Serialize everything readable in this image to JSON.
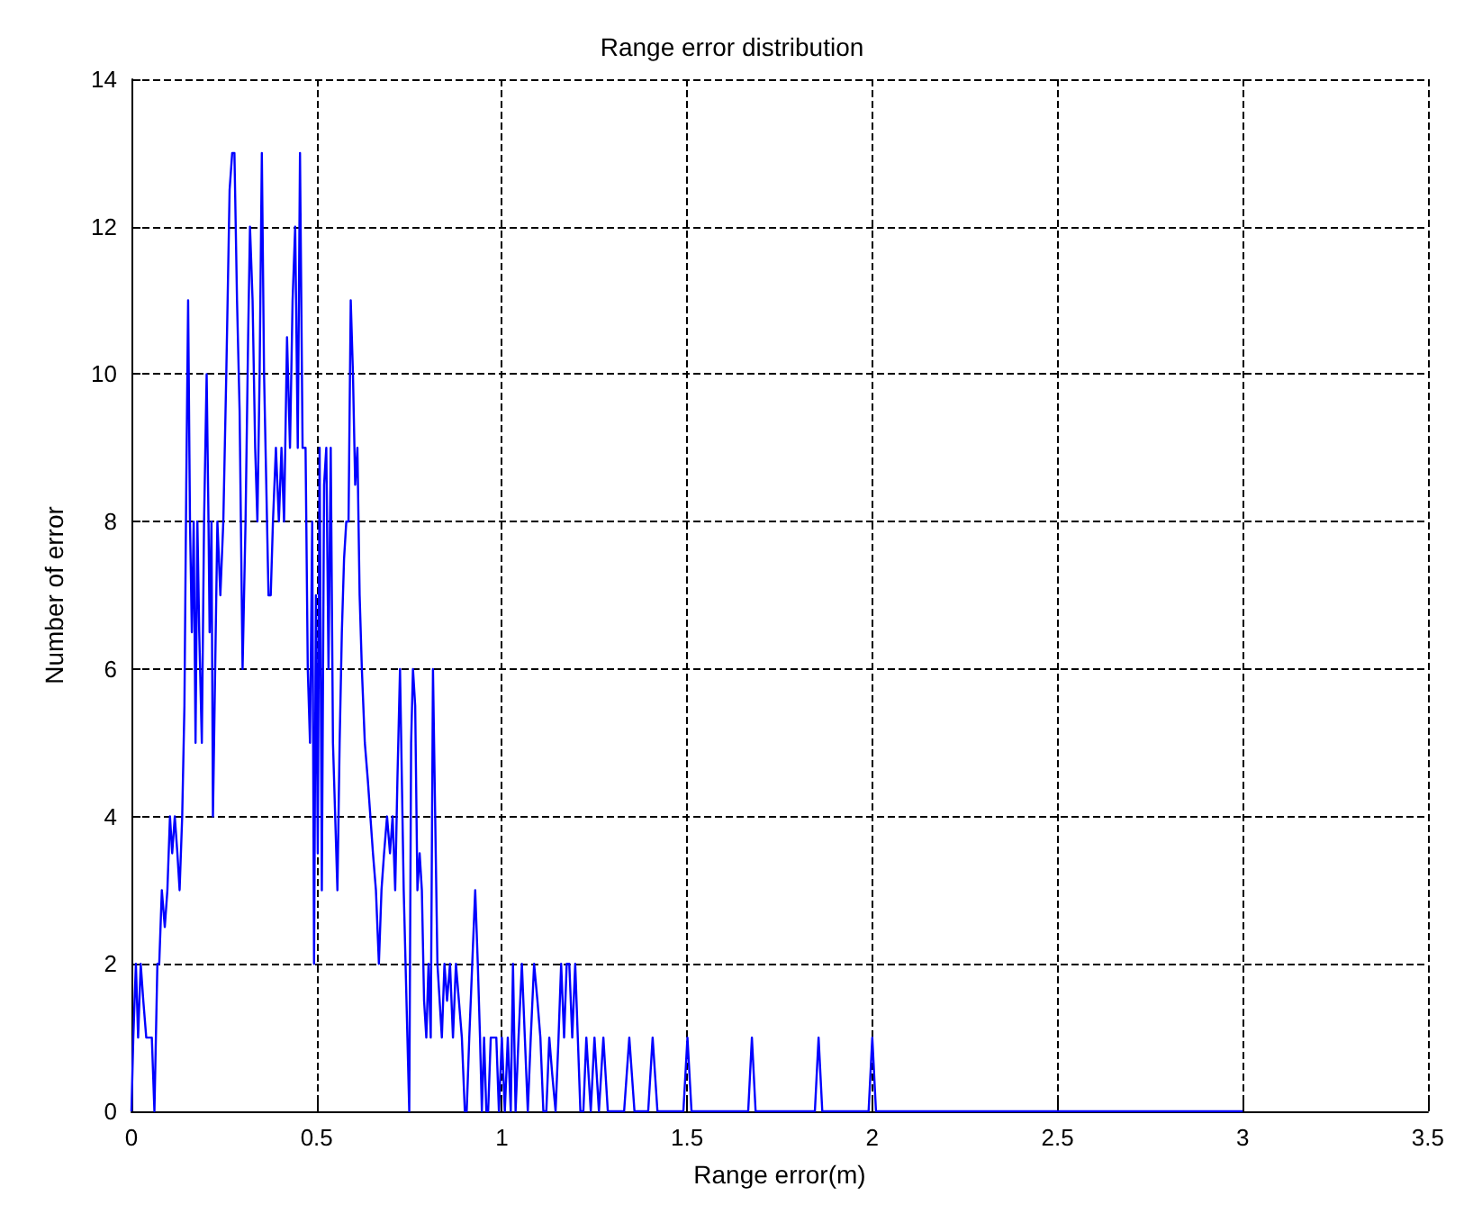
{
  "chart_data": {
    "type": "line",
    "title": "Range error distribution",
    "xlabel": "Range error(m)",
    "ylabel": "Number of error",
    "xlim": [
      0,
      3.5
    ],
    "xticks": [
      0,
      0.5,
      1,
      1.5,
      2,
      2.5,
      3,
      3.5
    ],
    "ylim": [
      0,
      14
    ],
    "yticks": [
      0,
      2,
      4,
      6,
      8,
      10,
      12,
      14
    ],
    "grid": true,
    "marker": "none",
    "line_style": "solid",
    "series": [
      {
        "color": "#0000ff",
        "x": [
          0,
          0.005,
          0.012,
          0.018,
          0.025,
          0.032,
          0.04,
          0.048,
          0.055,
          0.062,
          0.07,
          0.075,
          0.082,
          0.09,
          0.097,
          0.104,
          0.11,
          0.117,
          0.124,
          0.13,
          0.137,
          0.143,
          0.148,
          0.153,
          0.158,
          0.163,
          0.168,
          0.173,
          0.178,
          0.183,
          0.19,
          0.196,
          0.203,
          0.208,
          0.211,
          0.216,
          0.22,
          0.226,
          0.232,
          0.24,
          0.248,
          0.256,
          0.265,
          0.272,
          0.278,
          0.285,
          0.292,
          0.3,
          0.308,
          0.315,
          0.32,
          0.327,
          0.334,
          0.34,
          0.346,
          0.352,
          0.358,
          0.364,
          0.37,
          0.376,
          0.382,
          0.39,
          0.398,
          0.405,
          0.412,
          0.42,
          0.428,
          0.435,
          0.442,
          0.449,
          0.455,
          0.462,
          0.47,
          0.476,
          0.482,
          0.488,
          0.493,
          0.498,
          0.503,
          0.508,
          0.514,
          0.52,
          0.526,
          0.532,
          0.538,
          0.544,
          0.55,
          0.556,
          0.562,
          0.568,
          0.574,
          0.58,
          0.586,
          0.592,
          0.598,
          0.604,
          0.61,
          0.616,
          0.622,
          0.63,
          0.638,
          0.645,
          0.652,
          0.66,
          0.668,
          0.675,
          0.682,
          0.69,
          0.698,
          0.705,
          0.712,
          0.718,
          0.725,
          0.73,
          0.735,
          0.74,
          0.745,
          0.75,
          0.755,
          0.76,
          0.766,
          0.772,
          0.778,
          0.784,
          0.79,
          0.796,
          0.802,
          0.808,
          0.814,
          0.82,
          0.826,
          0.832,
          0.838,
          0.845,
          0.852,
          0.86,
          0.868,
          0.876,
          0.884,
          0.892,
          0.9,
          0.905,
          0.912,
          0.92,
          0.928,
          0.935,
          0.941,
          0.946,
          0.952,
          0.958,
          0.963,
          0.97,
          0.978,
          0.985,
          0.992,
          1.0,
          1.008,
          1.016,
          1.024,
          1.03,
          1.037,
          1.045,
          1.054,
          1.062,
          1.07,
          1.078,
          1.087,
          1.096,
          1.104,
          1.112,
          1.12,
          1.128,
          1.136,
          1.145,
          1.153,
          1.16,
          1.168,
          1.175,
          1.182,
          1.19,
          1.198,
          1.205,
          1.212,
          1.22,
          1.228,
          1.24,
          1.25,
          1.262,
          1.274,
          1.286,
          1.298,
          1.33,
          1.344,
          1.358,
          1.395,
          1.407,
          1.42,
          1.49,
          1.501,
          1.512,
          1.665,
          1.675,
          1.685,
          1.845,
          1.855,
          1.865,
          1.99,
          2.0,
          2.01,
          3.0
        ],
        "values": [
          0,
          1,
          2,
          1,
          2,
          1.5,
          1,
          1,
          1,
          0,
          2,
          2,
          3,
          2.5,
          3,
          4,
          3.5,
          4,
          3.5,
          3,
          4,
          5.5,
          8.5,
          11,
          8,
          6.5,
          8,
          5,
          8,
          6.5,
          5,
          8,
          10,
          8,
          6.5,
          8,
          4,
          6,
          8,
          7,
          8,
          10,
          12.5,
          13,
          13,
          11,
          9.5,
          6,
          8,
          10.5,
          12,
          11,
          9,
          8,
          10,
          13,
          10,
          8.5,
          7,
          7,
          8,
          9,
          8,
          9,
          8,
          10.5,
          9,
          11,
          12,
          9,
          13,
          9,
          9,
          6,
          5,
          8,
          2,
          7,
          3.5,
          9,
          3,
          8.5,
          9,
          6,
          9,
          5,
          4,
          3,
          5,
          6.5,
          7.5,
          8,
          8,
          11,
          10,
          8.5,
          9,
          7,
          6,
          5,
          4.5,
          4,
          3.5,
          3,
          2,
          3,
          3.5,
          4,
          3.5,
          4,
          3,
          4.5,
          6,
          4.5,
          3,
          2,
          1,
          0,
          5,
          6,
          5.5,
          3,
          3.5,
          3,
          1.5,
          1,
          2,
          1,
          6,
          4,
          2,
          1.5,
          1,
          2,
          1.5,
          2,
          1,
          2,
          1.5,
          1,
          0,
          0,
          1,
          2,
          3,
          2,
          1,
          0,
          1,
          0,
          0,
          1,
          1,
          1,
          0,
          1,
          0,
          1,
          0,
          2,
          0,
          1,
          2,
          1,
          0,
          1,
          2,
          1.5,
          1,
          0,
          0,
          1,
          0.5,
          0,
          1,
          2,
          1,
          2,
          2,
          1,
          2,
          1,
          0,
          0,
          1,
          0,
          1,
          0,
          1,
          0,
          0,
          0,
          1,
          0,
          0,
          1,
          0,
          0,
          1,
          0,
          0,
          1,
          0,
          0,
          1,
          0,
          0,
          1,
          0,
          0
        ]
      }
    ]
  }
}
